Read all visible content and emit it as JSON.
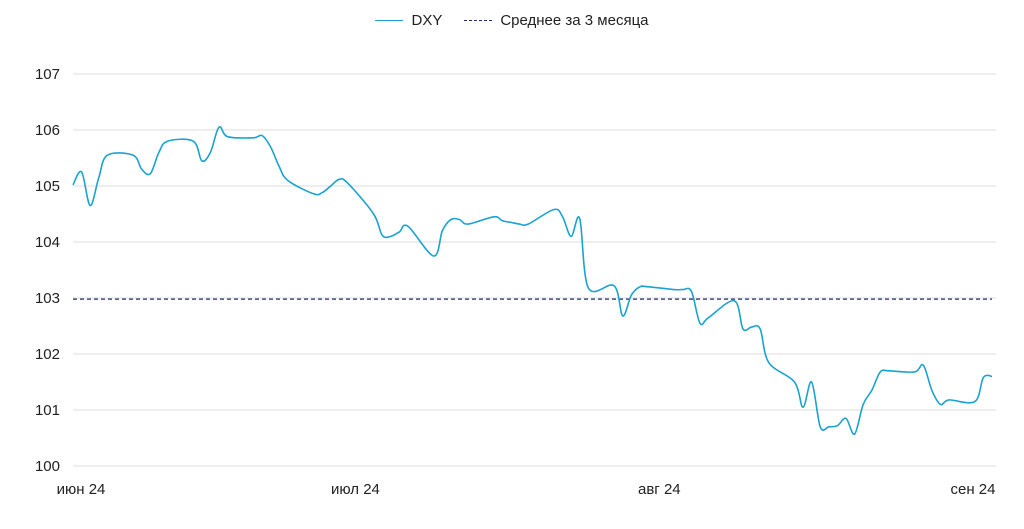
{
  "legend": {
    "series_label": "DXY",
    "average_label": "Среднее за 3 месяца"
  },
  "colors": {
    "series": "#1aa3d1",
    "average": "#1f2f6b",
    "grid": "#dcdcdc"
  },
  "chart_data": {
    "type": "line",
    "title": "",
    "xlabel": "",
    "ylabel": "",
    "ylim": [
      100,
      107
    ],
    "yticks": [
      "100",
      "101",
      "102",
      "103",
      "104",
      "105",
      "106",
      "107"
    ],
    "xticks": [
      {
        "label": "июн 24",
        "date": "2024-06-03"
      },
      {
        "label": "июл 24",
        "date": "2024-07-01"
      },
      {
        "label": "авг 24",
        "date": "2024-08-01"
      },
      {
        "label": "сен 24",
        "date": "2024-09-02"
      }
    ],
    "grid": true,
    "legend_position": "top-center",
    "average": 102.98,
    "series": [
      {
        "name": "DXY",
        "points": [
          [
            "2024-06-03",
            105.02
          ],
          [
            "2024-06-04",
            105.25
          ],
          [
            "2024-06-05",
            104.65
          ],
          [
            "2024-06-06",
            105.15
          ],
          [
            "2024-06-07",
            105.55
          ],
          [
            "2024-06-10",
            105.55
          ],
          [
            "2024-06-11",
            105.3
          ],
          [
            "2024-06-12",
            105.22
          ],
          [
            "2024-06-13",
            105.6
          ],
          [
            "2024-06-14",
            105.8
          ],
          [
            "2024-06-17",
            105.8
          ],
          [
            "2024-06-18",
            105.45
          ],
          [
            "2024-06-19",
            105.6
          ],
          [
            "2024-06-20",
            106.05
          ],
          [
            "2024-06-21",
            105.88
          ],
          [
            "2024-06-24",
            105.86
          ],
          [
            "2024-06-25",
            105.9
          ],
          [
            "2024-06-26",
            105.7
          ],
          [
            "2024-06-27",
            105.35
          ],
          [
            "2024-06-28",
            105.1
          ],
          [
            "2024-07-01",
            104.86
          ],
          [
            "2024-07-02",
            104.88
          ],
          [
            "2024-07-03",
            105.0
          ],
          [
            "2024-07-04",
            105.12
          ],
          [
            "2024-07-05",
            105.05
          ],
          [
            "2024-07-08",
            104.5
          ],
          [
            "2024-07-09",
            104.12
          ],
          [
            "2024-07-10",
            104.1
          ],
          [
            "2024-07-11",
            104.18
          ],
          [
            "2024-07-12",
            104.28
          ],
          [
            "2024-07-15",
            103.75
          ],
          [
            "2024-07-16",
            104.2
          ],
          [
            "2024-07-17",
            104.4
          ],
          [
            "2024-07-18",
            104.4
          ],
          [
            "2024-07-19",
            104.32
          ],
          [
            "2024-07-22",
            104.45
          ],
          [
            "2024-07-23",
            104.38
          ],
          [
            "2024-07-24",
            104.35
          ],
          [
            "2024-07-25",
            104.32
          ],
          [
            "2024-07-26",
            104.32
          ],
          [
            "2024-07-29",
            104.58
          ],
          [
            "2024-07-30",
            104.45
          ],
          [
            "2024-07-31",
            104.1
          ],
          [
            "2024-08-01",
            104.42
          ],
          [
            "2024-08-02",
            103.18
          ],
          [
            "2024-08-05",
            103.22
          ],
          [
            "2024-08-06",
            102.68
          ],
          [
            "2024-08-07",
            103.05
          ],
          [
            "2024-08-08",
            103.2
          ],
          [
            "2024-08-09",
            103.2
          ],
          [
            "2024-08-12",
            103.15
          ],
          [
            "2024-08-13",
            103.15
          ],
          [
            "2024-08-14",
            103.12
          ],
          [
            "2024-08-15",
            102.55
          ],
          [
            "2024-08-16",
            102.65
          ],
          [
            "2024-08-19",
            102.95
          ],
          [
            "2024-08-20",
            102.45
          ],
          [
            "2024-08-21",
            102.48
          ],
          [
            "2024-08-22",
            102.45
          ],
          [
            "2024-08-23",
            101.85
          ],
          [
            "2024-08-26",
            101.5
          ],
          [
            "2024-08-27",
            101.05
          ],
          [
            "2024-08-28",
            101.5
          ],
          [
            "2024-08-29",
            100.7
          ],
          [
            "2024-08-30",
            100.7
          ],
          [
            "2024-08-31",
            100.72
          ],
          [
            "2024-09-01",
            100.85
          ],
          [
            "2024-09-02",
            100.57
          ],
          [
            "2024-09-03",
            101.1
          ],
          [
            "2024-09-04",
            101.35
          ],
          [
            "2024-09-05",
            101.68
          ],
          [
            "2024-09-06",
            101.7
          ],
          [
            "2024-09-09",
            101.68
          ],
          [
            "2024-09-10",
            101.8
          ],
          [
            "2024-09-11",
            101.35
          ],
          [
            "2024-09-12",
            101.1
          ],
          [
            "2024-09-13",
            101.18
          ],
          [
            "2024-09-16",
            101.15
          ],
          [
            "2024-09-17",
            101.58
          ],
          [
            "2024-09-18",
            101.6
          ]
        ]
      }
    ]
  }
}
